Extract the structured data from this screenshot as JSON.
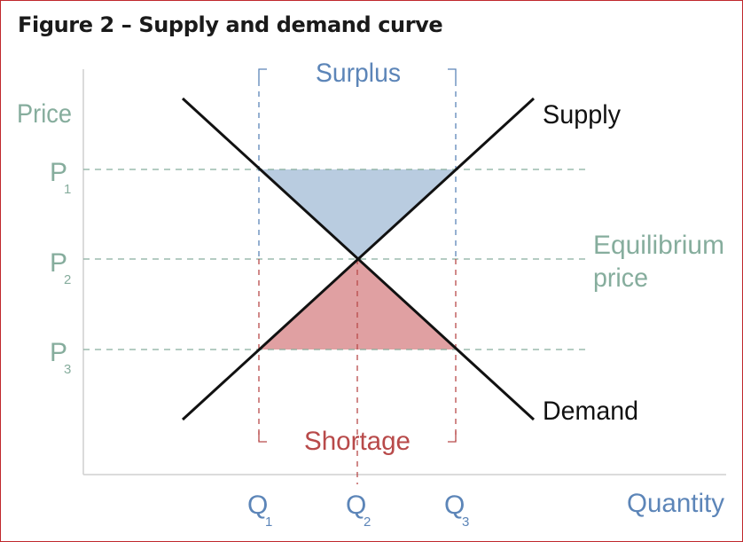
{
  "title": "Figure 2 – Supply and demand curve",
  "axes": {
    "y_label": "Price",
    "x_label": "Quantity"
  },
  "prices": [
    {
      "letter": "P",
      "sub": "1"
    },
    {
      "letter": "P",
      "sub": "2"
    },
    {
      "letter": "P",
      "sub": "3"
    }
  ],
  "quantities": [
    {
      "letter": "Q",
      "sub": "1"
    },
    {
      "letter": "Q",
      "sub": "2"
    },
    {
      "letter": "Q",
      "sub": "3"
    }
  ],
  "curves": {
    "supply": "Supply",
    "demand": "Demand"
  },
  "regions": {
    "surplus": "Surplus",
    "shortage": "Shortage"
  },
  "equilibrium": {
    "line1": "Equilibrium",
    "line2": "price"
  },
  "colors": {
    "border": "#c0282d",
    "label_green": "#86ad9d",
    "surplus_blue": "#5c85b8",
    "surplus_fill": "#b9cce0",
    "shortage_red": "#b84a4a",
    "shortage_fill": "#e0a0a2",
    "curve": "#111111",
    "axis": "#cfcfcf"
  }
}
